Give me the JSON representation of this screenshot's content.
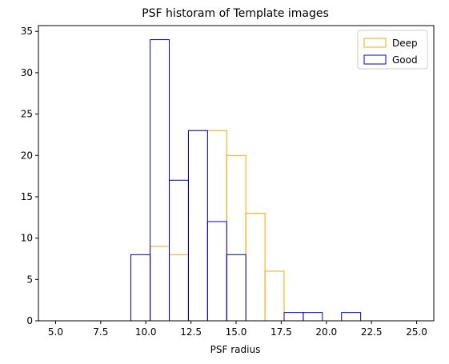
{
  "chart_data": {
    "type": "histogram",
    "title": "PSF historam of Template images",
    "xlabel": "PSF radius",
    "ylabel": "",
    "xlim": [
      4.05,
      25.95
    ],
    "ylim": [
      0,
      35.7
    ],
    "xticks": [
      "5.0",
      "7.5",
      "10.0",
      "12.5",
      "15.0",
      "17.5",
      "20.0",
      "22.5",
      "25.0"
    ],
    "yticks": [
      "0",
      "5",
      "10",
      "15",
      "20",
      "25",
      "30",
      "35"
    ],
    "grid": false,
    "legend_position": "top-right",
    "series": [
      {
        "name": "Deep",
        "color": "#ffa500",
        "fill": "none",
        "bins": [
          {
            "x0": 10.24,
            "x1": 11.3,
            "count": 9
          },
          {
            "x0": 11.3,
            "x1": 12.36,
            "count": 8
          },
          {
            "x0": 12.36,
            "x1": 13.42,
            "count": 23
          },
          {
            "x0": 13.42,
            "x1": 14.48,
            "count": 23
          },
          {
            "x0": 14.48,
            "x1": 15.54,
            "count": 20
          },
          {
            "x0": 15.54,
            "x1": 16.6,
            "count": 13
          },
          {
            "x0": 16.6,
            "x1": 17.66,
            "count": 6
          }
        ]
      },
      {
        "name": "Good",
        "color": "#0000cd",
        "fill": "none",
        "bins": [
          {
            "x0": 9.17,
            "x1": 10.24,
            "count": 8
          },
          {
            "x0": 10.24,
            "x1": 11.3,
            "count": 34
          },
          {
            "x0": 11.3,
            "x1": 12.36,
            "count": 17
          },
          {
            "x0": 12.36,
            "x1": 13.42,
            "count": 23
          },
          {
            "x0": 13.42,
            "x1": 14.48,
            "count": 12
          },
          {
            "x0": 14.48,
            "x1": 15.54,
            "count": 8
          },
          {
            "x0": 15.54,
            "x1": 16.6,
            "count": 0
          },
          {
            "x0": 16.6,
            "x1": 17.66,
            "count": 0
          },
          {
            "x0": 17.66,
            "x1": 18.72,
            "count": 1
          },
          {
            "x0": 18.72,
            "x1": 19.78,
            "count": 1
          },
          {
            "x0": 19.78,
            "x1": 20.84,
            "count": 0
          },
          {
            "x0": 20.84,
            "x1": 21.9,
            "count": 1
          }
        ]
      }
    ]
  }
}
